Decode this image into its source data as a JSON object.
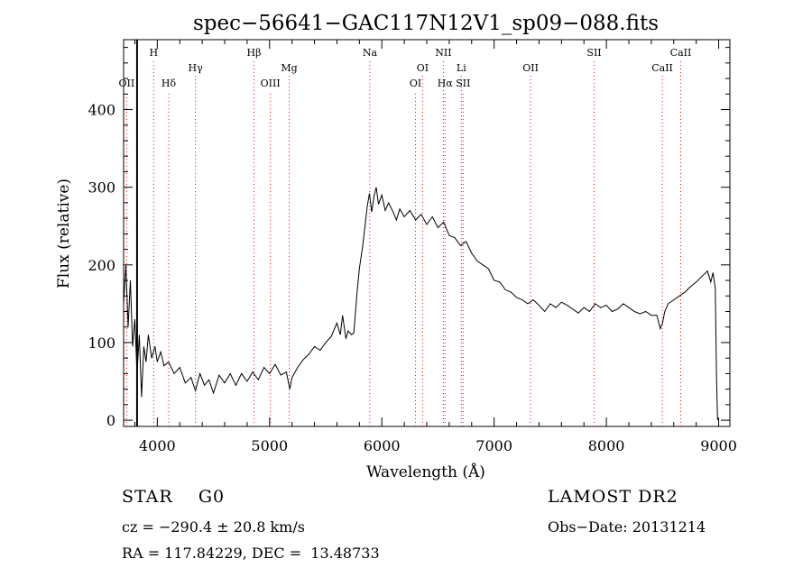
{
  "chart_data": {
    "type": "line",
    "title": "spec−56641−GAC117N12V1_sp09−088.fits",
    "xlabel": "Wavelength (Å)",
    "ylabel": "Flux (relative)",
    "xlim": [
      3700,
      9100
    ],
    "ylim": [
      -8,
      490
    ],
    "x_ticks": [
      4000,
      5000,
      6000,
      7000,
      8000,
      9000
    ],
    "y_ticks": [
      0,
      100,
      200,
      300,
      400
    ],
    "grid": false,
    "series": [
      {
        "color": "#000000",
        "points": [
          [
            3700,
            150
          ],
          [
            3720,
            200
          ],
          [
            3740,
            120
          ],
          [
            3760,
            180
          ],
          [
            3780,
            95
          ],
          [
            3800,
            130
          ],
          [
            3820,
            60
          ],
          [
            3840,
            110
          ],
          [
            3860,
            30
          ],
          [
            3880,
            95
          ],
          [
            3900,
            75
          ],
          [
            3920,
            110
          ],
          [
            3950,
            80
          ],
          [
            3980,
            95
          ],
          [
            4000,
            75
          ],
          [
            4030,
            88
          ],
          [
            4060,
            70
          ],
          [
            4100,
            75
          ],
          [
            4150,
            60
          ],
          [
            4200,
            68
          ],
          [
            4250,
            48
          ],
          [
            4300,
            55
          ],
          [
            4340,
            38
          ],
          [
            4380,
            60
          ],
          [
            4420,
            45
          ],
          [
            4460,
            52
          ],
          [
            4500,
            35
          ],
          [
            4550,
            58
          ],
          [
            4600,
            48
          ],
          [
            4650,
            60
          ],
          [
            4700,
            45
          ],
          [
            4750,
            60
          ],
          [
            4800,
            50
          ],
          [
            4850,
            62
          ],
          [
            4900,
            52
          ],
          [
            4950,
            68
          ],
          [
            5000,
            60
          ],
          [
            5050,
            72
          ],
          [
            5100,
            58
          ],
          [
            5150,
            62
          ],
          [
            5180,
            40
          ],
          [
            5200,
            55
          ],
          [
            5250,
            68
          ],
          [
            5300,
            78
          ],
          [
            5350,
            85
          ],
          [
            5400,
            95
          ],
          [
            5450,
            90
          ],
          [
            5500,
            100
          ],
          [
            5550,
            108
          ],
          [
            5600,
            125
          ],
          [
            5630,
            110
          ],
          [
            5650,
            135
          ],
          [
            5680,
            105
          ],
          [
            5700,
            115
          ],
          [
            5730,
            110
          ],
          [
            5750,
            112
          ],
          [
            5780,
            165
          ],
          [
            5800,
            195
          ],
          [
            5830,
            225
          ],
          [
            5850,
            250
          ],
          [
            5870,
            275
          ],
          [
            5890,
            292
          ],
          [
            5910,
            268
          ],
          [
            5930,
            288
          ],
          [
            5950,
            300
          ],
          [
            5970,
            278
          ],
          [
            6000,
            290
          ],
          [
            6030,
            270
          ],
          [
            6060,
            280
          ],
          [
            6100,
            268
          ],
          [
            6130,
            258
          ],
          [
            6160,
            272
          ],
          [
            6200,
            262
          ],
          [
            6250,
            270
          ],
          [
            6300,
            258
          ],
          [
            6350,
            265
          ],
          [
            6400,
            252
          ],
          [
            6450,
            262
          ],
          [
            6500,
            248
          ],
          [
            6550,
            255
          ],
          [
            6600,
            238
          ],
          [
            6650,
            235
          ],
          [
            6700,
            225
          ],
          [
            6750,
            230
          ],
          [
            6800,
            215
          ],
          [
            6850,
            205
          ],
          [
            6900,
            200
          ],
          [
            6950,
            195
          ],
          [
            7000,
            180
          ],
          [
            7050,
            178
          ],
          [
            7100,
            168
          ],
          [
            7150,
            165
          ],
          [
            7200,
            158
          ],
          [
            7250,
            155
          ],
          [
            7300,
            150
          ],
          [
            7350,
            155
          ],
          [
            7400,
            148
          ],
          [
            7450,
            140
          ],
          [
            7500,
            150
          ],
          [
            7550,
            145
          ],
          [
            7600,
            152
          ],
          [
            7650,
            148
          ],
          [
            7700,
            143
          ],
          [
            7750,
            138
          ],
          [
            7800,
            145
          ],
          [
            7850,
            140
          ],
          [
            7900,
            150
          ],
          [
            7950,
            145
          ],
          [
            8000,
            148
          ],
          [
            8050,
            140
          ],
          [
            8100,
            143
          ],
          [
            8150,
            150
          ],
          [
            8200,
            145
          ],
          [
            8250,
            140
          ],
          [
            8300,
            137
          ],
          [
            8350,
            140
          ],
          [
            8400,
            135
          ],
          [
            8450,
            135
          ],
          [
            8480,
            118
          ],
          [
            8500,
            125
          ],
          [
            8520,
            140
          ],
          [
            8550,
            150
          ],
          [
            8600,
            155
          ],
          [
            8650,
            160
          ],
          [
            8700,
            165
          ],
          [
            8750,
            172
          ],
          [
            8800,
            178
          ],
          [
            8850,
            185
          ],
          [
            8900,
            192
          ],
          [
            8930,
            178
          ],
          [
            8950,
            190
          ],
          [
            8970,
            170
          ],
          [
            8980,
            60
          ],
          [
            8990,
            0
          ]
        ]
      }
    ],
    "lines": [
      {
        "label": "OII",
        "wl": 3727,
        "row": 3
      },
      {
        "label": "H",
        "wl": 3968,
        "row": 1
      },
      {
        "label": "Hδ",
        "wl": 4102,
        "row": 3
      },
      {
        "label": "Hγ",
        "wl": 4340,
        "row": 2
      },
      {
        "label": "Hβ",
        "wl": 4861,
        "row": 1
      },
      {
        "label": "OIII",
        "wl": 5007,
        "row": 3
      },
      {
        "label": "Mg",
        "wl": 5175,
        "row": 2
      },
      {
        "label": "Na",
        "wl": 5893,
        "row": 1
      },
      {
        "label": "OI",
        "wl": 6300,
        "row": 3
      },
      {
        "label": "OI",
        "wl": 6363,
        "row": 2
      },
      {
        "label": "NII",
        "wl": 6548,
        "row": 1
      },
      {
        "label": "Hα",
        "wl": 6563,
        "row": 3
      },
      {
        "label": "Li",
        "wl": 6708,
        "row": 2
      },
      {
        "label": "SII",
        "wl": 6724,
        "row": 3
      },
      {
        "label": "OII",
        "wl": 7325,
        "row": 2
      },
      {
        "label": "SII",
        "wl": 7891,
        "row": 1
      },
      {
        "label": "CaII",
        "wl": 8498,
        "row": 2
      },
      {
        "label": "CaII",
        "wl": 8662,
        "row": 1
      }
    ]
  },
  "info": {
    "star_class": "STAR    G0",
    "survey": "LAMOST DR2",
    "cz": "cz = −290.4 ± 20.8 km/s",
    "obs_date": "Obs−Date: 20131214",
    "radec": "RA = 117.84229, DEC =  13.48733"
  },
  "colors": {
    "spectrum": "#000000",
    "line_marker": "#ff0000"
  }
}
